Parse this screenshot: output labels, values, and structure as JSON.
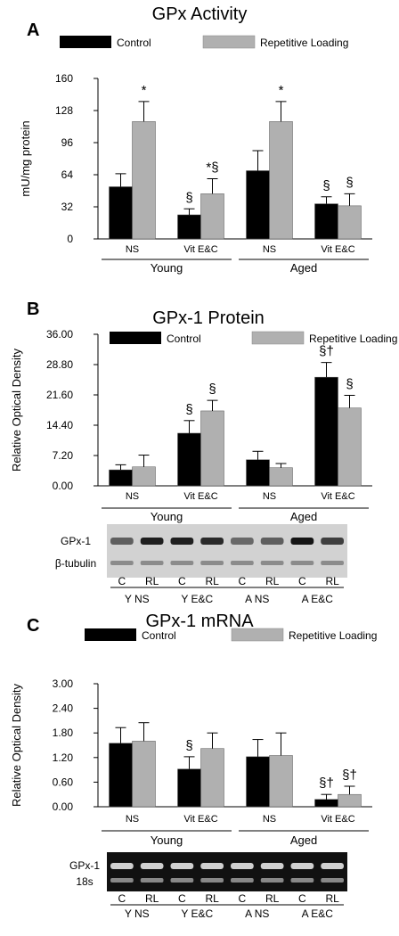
{
  "colors": {
    "control": "#000000",
    "repetitive_loading": "#b0b0b0",
    "axis": "#000000",
    "blot_bg": "#d2d2d2",
    "gel_bg": "#111111"
  },
  "chart_data": [
    {
      "panel": "A",
      "title": "GPx Activity",
      "type": "bar",
      "ylabel": "mU/mg protein",
      "ylim": [
        0,
        160
      ],
      "yticks": [
        "0",
        "32",
        "64",
        "96",
        "128",
        "160"
      ],
      "categories": [
        "NS",
        "Vit E&C",
        "NS",
        "Vit E&C"
      ],
      "groups": [
        "Young",
        "Aged"
      ],
      "legend": [
        "Control",
        "Repetitive Loading"
      ],
      "series": [
        {
          "name": "Control",
          "values": [
            52,
            24,
            68,
            35
          ],
          "errors": [
            13,
            6,
            20,
            7
          ]
        },
        {
          "name": "Repetitive Loading",
          "values": [
            117,
            45,
            117,
            33
          ],
          "errors": [
            20,
            15,
            20,
            12
          ]
        }
      ],
      "annotations": [
        {
          "series": 1,
          "index": 0,
          "text": "*"
        },
        {
          "series": 0,
          "index": 1,
          "text": "§"
        },
        {
          "series": 1,
          "index": 1,
          "text": "*§"
        },
        {
          "series": 1,
          "index": 2,
          "text": "*"
        },
        {
          "series": 0,
          "index": 3,
          "text": "§"
        },
        {
          "series": 1,
          "index": 3,
          "text": "§"
        }
      ]
    },
    {
      "panel": "B",
      "title": "GPx-1 Protein",
      "type": "bar",
      "ylabel": "Relative Optical Density",
      "ylim": [
        0,
        36
      ],
      "yticks": [
        "0.00",
        "7.20",
        "14.40",
        "21.60",
        "28.80",
        "36.00"
      ],
      "categories": [
        "NS",
        "Vit E&C",
        "NS",
        "Vit E&C"
      ],
      "groups": [
        "Young",
        "Aged"
      ],
      "legend": [
        "Control",
        "Repetitive Loading"
      ],
      "series": [
        {
          "name": "Control",
          "values": [
            3.8,
            12.5,
            6.2,
            25.8
          ],
          "errors": [
            1.2,
            3.0,
            2.0,
            3.5
          ]
        },
        {
          "name": "Repetitive Loading",
          "values": [
            4.5,
            17.8,
            4.3,
            18.5
          ],
          "errors": [
            2.8,
            2.5,
            1.0,
            3.0
          ]
        }
      ],
      "annotations": [
        {
          "series": 0,
          "index": 1,
          "text": "§"
        },
        {
          "series": 1,
          "index": 1,
          "text": "§"
        },
        {
          "series": 0,
          "index": 3,
          "text": "§†"
        },
        {
          "series": 1,
          "index": 3,
          "text": "§"
        }
      ],
      "blot": {
        "rows": [
          "GPx-1",
          "β-tubulin"
        ],
        "lane_labels": [
          "C",
          "RL",
          "C",
          "RL",
          "C",
          "RL",
          "C",
          "RL"
        ],
        "group_labels": [
          "Y NS",
          "Y E&C",
          "A NS",
          "A E&C"
        ]
      }
    },
    {
      "panel": "C",
      "title": "GPx-1 mRNA",
      "type": "bar",
      "ylabel": "Relative Optical Density",
      "ylim": [
        0,
        3
      ],
      "yticks": [
        "0.00",
        "0.60",
        "1.20",
        "1.80",
        "2.40",
        "3.00"
      ],
      "categories": [
        "NS",
        "Vit E&C",
        "NS",
        "Vit E&C"
      ],
      "groups": [
        "Young",
        "Aged"
      ],
      "legend": [
        "Control",
        "Repetitive Loading"
      ],
      "series": [
        {
          "name": "Control",
          "values": [
            1.55,
            0.92,
            1.22,
            0.18
          ],
          "errors": [
            0.38,
            0.3,
            0.42,
            0.12
          ]
        },
        {
          "name": "Repetitive Loading",
          "values": [
            1.6,
            1.42,
            1.25,
            0.3
          ],
          "errors": [
            0.45,
            0.38,
            0.55,
            0.2
          ]
        }
      ],
      "annotations": [
        {
          "series": 0,
          "index": 1,
          "text": "§"
        },
        {
          "series": 0,
          "index": 3,
          "text": "§†"
        },
        {
          "series": 1,
          "index": 3,
          "text": "§†"
        }
      ],
      "blot": {
        "rows": [
          "GPx-1",
          "18s"
        ],
        "lane_labels": [
          "C",
          "RL",
          "C",
          "RL",
          "C",
          "RL",
          "C",
          "RL"
        ],
        "group_labels": [
          "Y NS",
          "Y E&C",
          "A NS",
          "A E&C"
        ]
      }
    }
  ]
}
